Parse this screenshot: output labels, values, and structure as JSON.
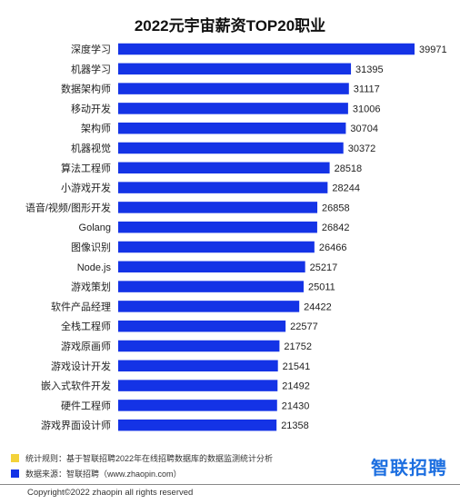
{
  "chart_data": {
    "type": "bar",
    "orientation": "horizontal",
    "title": "2022元宇宙薪资TOP20职业",
    "xlabel": "",
    "ylabel": "",
    "categories": [
      "深度学习",
      "机器学习",
      "数据架构师",
      "移动开发",
      "架构师",
      "机器视觉",
      "算法工程师",
      "小游戏开发",
      "语音/视频/图形开发",
      "Golang",
      "图像识别",
      "Node.js",
      "游戏策划",
      "软件产品经理",
      "全栈工程师",
      "游戏原画师",
      "游戏设计开发",
      "嵌入式软件开发",
      "硬件工程师",
      "游戏界面设计师"
    ],
    "values": [
      39971,
      31395,
      31117,
      31006,
      30704,
      30372,
      28518,
      28244,
      26858,
      26842,
      26466,
      25217,
      25011,
      24422,
      22577,
      21752,
      21541,
      21492,
      21430,
      21358
    ],
    "xlim": [
      0,
      39971
    ],
    "grid": false,
    "bar_color": "#1433e6"
  },
  "notes": [
    {
      "text": "统计规则：基于智联招聘2022年在线招聘数据库的数据监测统计分析",
      "color": "#f3d23a"
    },
    {
      "text": "数据来源：智联招聘（www.zhaopin.com）",
      "color": "#1433e6"
    }
  ],
  "brand": "智联招聘",
  "copyright": "Copyright©2022 zhaopin all rights reserved"
}
